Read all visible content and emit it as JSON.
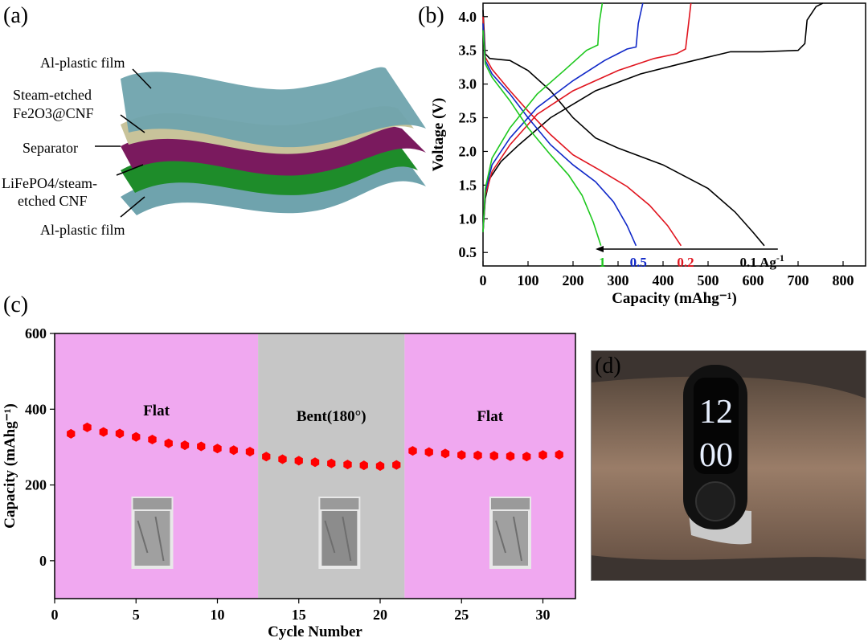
{
  "panels": {
    "a": {
      "label": "(a)",
      "layers": [
        {
          "text": "Al-plastic film",
          "color": "#6fa3ad"
        },
        {
          "text": "Steam-etched",
          "color": "#c8c39a"
        },
        {
          "text": "Fe2O3@CNF",
          "color": "#c8c39a"
        },
        {
          "text": "Separator",
          "color": "#7a1a5e"
        },
        {
          "text": "LiFePO4/steam-",
          "color": "#1e8c2a"
        },
        {
          "text": "etched CNF",
          "color": "#1e8c2a"
        },
        {
          "text": "Al-plastic film",
          "color": "#6fa3ad"
        }
      ]
    },
    "d": {
      "label": "(d)",
      "watch_time_top": "12",
      "watch_time_bottom": "00"
    }
  },
  "chart_data": [
    {
      "panel": "(b)",
      "type": "line",
      "xlabel": "Capacity (mAhg⁻¹)",
      "ylabel": "Voltage (V)",
      "xlim": [
        0,
        850
      ],
      "ylim": [
        0.3,
        4.2
      ],
      "xticks": [
        0,
        100,
        200,
        300,
        400,
        500,
        600,
        700,
        800
      ],
      "yticks": [
        0.5,
        1.0,
        1.5,
        2.0,
        2.5,
        3.0,
        3.5,
        4.0
      ],
      "annotation_arrow": {
        "from": 655,
        "to": 250,
        "y": 0.55
      },
      "series": [
        {
          "name": "0.1 Ag⁻¹",
          "color": "#000000",
          "charge": [
            [
              0,
              0.8
            ],
            [
              5,
              1.3
            ],
            [
              15,
              1.6
            ],
            [
              40,
              1.85
            ],
            [
              80,
              2.1
            ],
            [
              150,
              2.5
            ],
            [
              250,
              2.9
            ],
            [
              350,
              3.15
            ],
            [
              450,
              3.32
            ],
            [
              550,
              3.48
            ],
            [
              620,
              3.48
            ],
            [
              700,
              3.5
            ],
            [
              715,
              3.6
            ],
            [
              720,
              3.95
            ],
            [
              740,
              4.15
            ],
            [
              755,
              4.2
            ]
          ],
          "discharge": [
            [
              0,
              4.1
            ],
            [
              5,
              3.45
            ],
            [
              15,
              3.38
            ],
            [
              60,
              3.35
            ],
            [
              100,
              3.2
            ],
            [
              150,
              2.9
            ],
            [
              200,
              2.5
            ],
            [
              250,
              2.2
            ],
            [
              300,
              2.05
            ],
            [
              400,
              1.8
            ],
            [
              500,
              1.45
            ],
            [
              560,
              1.1
            ],
            [
              600,
              0.8
            ],
            [
              625,
              0.6
            ]
          ]
        },
        {
          "name": "0.2",
          "color": "#e0141e",
          "charge": [
            [
              0,
              0.8
            ],
            [
              5,
              1.35
            ],
            [
              20,
              1.7
            ],
            [
              60,
              2.1
            ],
            [
              120,
              2.55
            ],
            [
              200,
              2.9
            ],
            [
              300,
              3.2
            ],
            [
              380,
              3.38
            ],
            [
              430,
              3.45
            ],
            [
              450,
              3.52
            ],
            [
              455,
              3.8
            ],
            [
              462,
              4.2
            ]
          ],
          "discharge": [
            [
              0,
              4.0
            ],
            [
              5,
              3.4
            ],
            [
              20,
              3.22
            ],
            [
              60,
              2.9
            ],
            [
              100,
              2.6
            ],
            [
              150,
              2.25
            ],
            [
              200,
              1.95
            ],
            [
              260,
              1.72
            ],
            [
              320,
              1.48
            ],
            [
              370,
              1.2
            ],
            [
              410,
              0.9
            ],
            [
              440,
              0.6
            ]
          ]
        },
        {
          "name": "0.5",
          "color": "#1028c8",
          "charge": [
            [
              0,
              0.8
            ],
            [
              5,
              1.4
            ],
            [
              20,
              1.8
            ],
            [
              60,
              2.2
            ],
            [
              120,
              2.65
            ],
            [
              200,
              3.05
            ],
            [
              270,
              3.35
            ],
            [
              320,
              3.52
            ],
            [
              340,
              3.55
            ],
            [
              345,
              3.9
            ],
            [
              355,
              4.2
            ]
          ],
          "discharge": [
            [
              0,
              3.9
            ],
            [
              5,
              3.35
            ],
            [
              20,
              3.15
            ],
            [
              60,
              2.85
            ],
            [
              100,
              2.5
            ],
            [
              150,
              2.1
            ],
            [
              200,
              1.8
            ],
            [
              250,
              1.55
            ],
            [
              290,
              1.25
            ],
            [
              320,
              0.9
            ],
            [
              340,
              0.6
            ]
          ]
        },
        {
          "name": "1",
          "color": "#1ec81e",
          "charge": [
            [
              0,
              0.8
            ],
            [
              5,
              1.45
            ],
            [
              20,
              1.9
            ],
            [
              60,
              2.35
            ],
            [
              120,
              2.85
            ],
            [
              180,
              3.2
            ],
            [
              230,
              3.5
            ],
            [
              255,
              3.58
            ],
            [
              258,
              3.9
            ],
            [
              265,
              4.2
            ]
          ],
          "discharge": [
            [
              0,
              3.8
            ],
            [
              5,
              3.3
            ],
            [
              20,
              3.1
            ],
            [
              60,
              2.75
            ],
            [
              100,
              2.35
            ],
            [
              150,
              1.95
            ],
            [
              190,
              1.65
            ],
            [
              220,
              1.35
            ],
            [
              245,
              0.95
            ],
            [
              262,
              0.6
            ]
          ]
        }
      ],
      "labels_at_arrow": [
        {
          "text": "1",
          "x": 265,
          "color": "#1ec81e"
        },
        {
          "text": "0.5",
          "x": 345,
          "color": "#1028c8"
        },
        {
          "text": "0.2",
          "x": 450,
          "color": "#e0141e"
        },
        {
          "text": "0.1 Ag",
          "sup": "-1",
          "x": 620,
          "color": "#000000"
        }
      ]
    },
    {
      "panel": "(c)",
      "type": "scatter",
      "xlabel": "Cycle Number",
      "ylabel": "Capacity (mAhg⁻¹)",
      "xlim": [
        0,
        32
      ],
      "ylim": [
        -100,
        600
      ],
      "xticks": [
        0,
        5,
        10,
        15,
        20,
        25,
        30
      ],
      "yticks": [
        0,
        200,
        400,
        600
      ],
      "marker_color": "#ff0000",
      "regions": [
        {
          "label": "Flat",
          "from": 0,
          "to": 12.5,
          "color": "#f0a8f0"
        },
        {
          "label": "Bent(180°)",
          "from": 12.5,
          "to": 21.5,
          "color": "#c6c6c6"
        },
        {
          "label": "Flat",
          "from": 21.5,
          "to": 32,
          "color": "#f0a8f0"
        }
      ],
      "x": [
        1,
        2,
        3,
        4,
        5,
        6,
        7,
        8,
        9,
        10,
        11,
        12,
        13,
        14,
        15,
        16,
        17,
        18,
        19,
        20,
        21,
        22,
        23,
        24,
        25,
        26,
        27,
        28,
        29,
        30,
        31
      ],
      "values": [
        335,
        352,
        340,
        336,
        327,
        320,
        310,
        305,
        302,
        296,
        292,
        288,
        275,
        268,
        264,
        260,
        257,
        254,
        252,
        250,
        253,
        290,
        287,
        283,
        279,
        278,
        277,
        276,
        275,
        279,
        280
      ]
    }
  ]
}
